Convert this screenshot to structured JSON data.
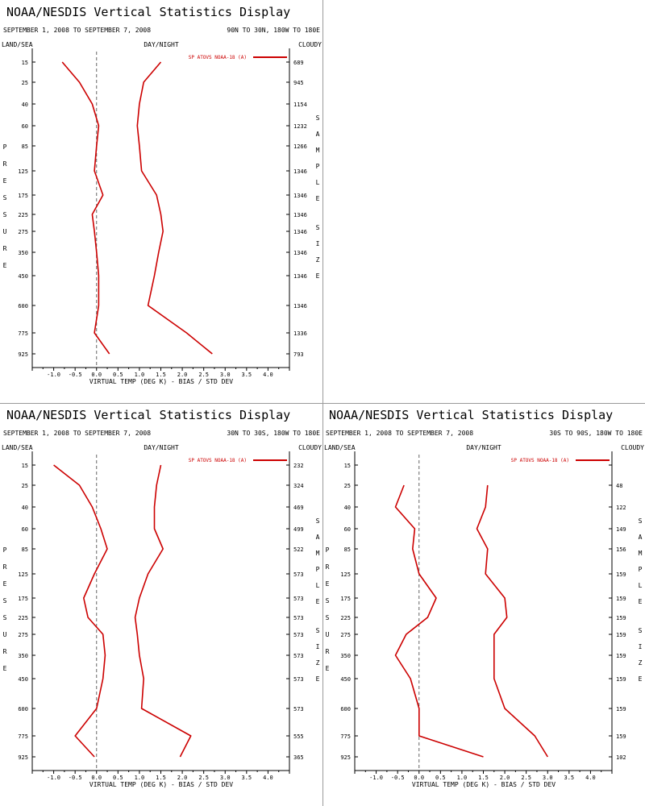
{
  "chart_data": [
    {
      "type": "line",
      "title": "NOAA/NESDIS Vertical Statistics Display",
      "date_range": "SEPTEMBER 1, 2008 TO SEPTEMBER 7, 2008",
      "region": "90N TO 30N, 180W TO 180E",
      "label_left": "LAND/SEA",
      "label_center": "DAY/NIGHT",
      "label_right": "CLOUDY",
      "ylabel": "PRESSURE",
      "y2label": "SAMPLE SIZE",
      "xlabel": "VIRTUAL TEMP (DEG K) - BIAS / STD DEV",
      "legend": "SP ATOVS NOAA-18 (A)",
      "legend_position": "top-right",
      "color": "#cc0000",
      "xlim": [
        -1.5,
        4.5
      ],
      "x_ticks": [
        "-1.0",
        "-0.5",
        "0.0",
        "0.5",
        "1.0",
        "1.5",
        "2.0",
        "2.5",
        "3.0",
        "3.5",
        "4.0"
      ],
      "pressure_levels": [
        "15",
        "25",
        "40",
        "60",
        "85",
        "125",
        "175",
        "225",
        "275",
        "350",
        "450",
        "600",
        "775",
        "925"
      ],
      "sample_sizes": [
        "689",
        "945",
        "1154",
        "1232",
        "1266",
        "1346",
        "1346",
        "1346",
        "1346",
        "1346",
        "1346",
        "1346",
        "1336",
        "793"
      ],
      "series": [
        {
          "values": [
            -0.8,
            -0.4,
            -0.1,
            0.05,
            0.0,
            -0.05,
            0.15,
            -0.1,
            -0.05,
            0.0,
            0.05,
            0.05,
            -0.05,
            0.3
          ]
        },
        {
          "values": [
            1.5,
            1.1,
            1.0,
            0.95,
            1.0,
            1.05,
            1.4,
            1.5,
            1.55,
            1.45,
            1.35,
            1.2,
            2.1,
            2.7
          ]
        }
      ]
    },
    {
      "type": "line",
      "title": "NOAA/NESDIS Vertical Statistics Display",
      "date_range": "SEPTEMBER 1, 2008 TO SEPTEMBER 7, 2008",
      "region": "30N TO 30S, 180W TO 180E",
      "label_left": "LAND/SEA",
      "label_center": "DAY/NIGHT",
      "label_right": "CLOUDY",
      "ylabel": "PRESSURE",
      "y2label": "SAMPLE SIZE",
      "xlabel": "VIRTUAL TEMP (DEG K) - BIAS / STD DEV",
      "legend": "SP ATOVS NOAA-18 (A)",
      "legend_position": "top-right",
      "color": "#cc0000",
      "xlim": [
        -1.5,
        4.5
      ],
      "x_ticks": [
        "-1.0",
        "-0.5",
        "0.0",
        "0.5",
        "1.0",
        "1.5",
        "2.0",
        "2.5",
        "3.0",
        "3.5",
        "4.0"
      ],
      "pressure_levels": [
        "15",
        "25",
        "40",
        "60",
        "85",
        "125",
        "175",
        "225",
        "275",
        "350",
        "450",
        "600",
        "775",
        "925"
      ],
      "sample_sizes": [
        "232",
        "324",
        "469",
        "499",
        "522",
        "573",
        "573",
        "573",
        "573",
        "573",
        "573",
        "573",
        "555",
        "365"
      ],
      "series": [
        {
          "values": [
            -1.0,
            -0.4,
            -0.1,
            0.1,
            0.25,
            -0.05,
            -0.3,
            -0.2,
            0.15,
            0.2,
            0.15,
            0.0,
            -0.5,
            -0.05
          ]
        },
        {
          "values": [
            1.5,
            1.4,
            1.35,
            1.35,
            1.55,
            1.2,
            1.0,
            0.9,
            0.95,
            1.0,
            1.1,
            1.05,
            2.2,
            1.95
          ]
        }
      ]
    },
    {
      "type": "line",
      "title": "NOAA/NESDIS Vertical Statistics Display",
      "date_range": "SEPTEMBER 1, 2008 TO SEPTEMBER 7, 2008",
      "region": "30S TO 90S, 180W TO 180E",
      "label_left": "LAND/SEA",
      "label_center": "DAY/NIGHT",
      "label_right": "CLOUDY",
      "ylabel": "PRESSURE",
      "y2label": "SAMPLE SIZE",
      "xlabel": "VIRTUAL TEMP (DEG K) - BIAS / STD DEV",
      "legend": "SP ATOVS NOAA-18 (A)",
      "legend_position": "top-right",
      "color": "#cc0000",
      "xlim": [
        -1.5,
        4.5
      ],
      "x_ticks": [
        "-1.0",
        "-0.5",
        "0.0",
        "0.5",
        "1.0",
        "1.5",
        "2.0",
        "2.5",
        "3.0",
        "3.5",
        "4.0"
      ],
      "pressure_levels": [
        "15",
        "25",
        "40",
        "60",
        "85",
        "125",
        "175",
        "225",
        "275",
        "350",
        "450",
        "600",
        "775",
        "925"
      ],
      "sample_sizes": [
        "",
        "48",
        "122",
        "149",
        "156",
        "159",
        "159",
        "159",
        "159",
        "159",
        "159",
        "159",
        "159",
        "102"
      ],
      "series": [
        {
          "values": [
            null,
            -0.35,
            -0.55,
            -0.1,
            -0.15,
            0.0,
            0.4,
            0.2,
            -0.3,
            -0.55,
            -0.2,
            0.0,
            0.0,
            1.5
          ]
        },
        {
          "values": [
            null,
            1.6,
            1.55,
            1.35,
            1.6,
            1.55,
            2.0,
            2.05,
            1.75,
            1.75,
            1.75,
            2.0,
            2.7,
            3.0
          ]
        }
      ]
    }
  ]
}
